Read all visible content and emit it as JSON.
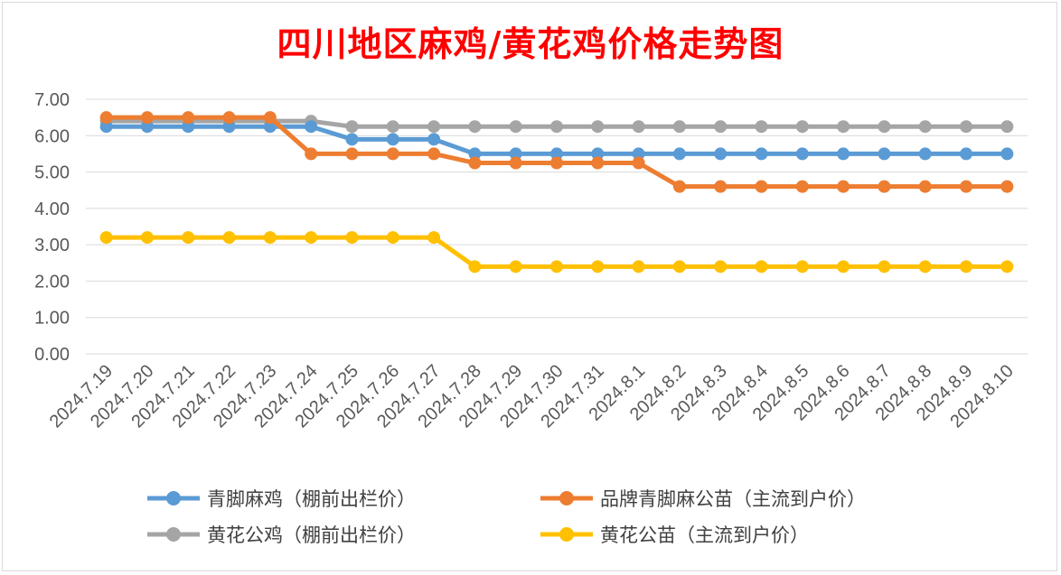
{
  "chart_data": {
    "type": "line",
    "title": "四川地区麻鸡/黄花鸡价格走势图",
    "categories": [
      "2024.7.19",
      "2024.7.20",
      "2024.7.21",
      "2024.7.22",
      "2024.7.23",
      "2024.7.24",
      "2024.7.25",
      "2024.7.26",
      "2024.7.27",
      "2024.7.28",
      "2024.7.29",
      "2024.7.30",
      "2024.7.31",
      "2024.8.1",
      "2024.8.2",
      "2024.8.3",
      "2024.8.4",
      "2024.8.5",
      "2024.8.6",
      "2024.8.7",
      "2024.8.8",
      "2024.8.9",
      "2024.8.10"
    ],
    "y_ticks": [
      "0.00",
      "1.00",
      "2.00",
      "3.00",
      "4.00",
      "5.00",
      "6.00",
      "7.00"
    ],
    "ylim": [
      0,
      7
    ],
    "grid": true,
    "legend_position": "bottom",
    "series": [
      {
        "name": "青脚麻鸡（棚前出栏价）",
        "color": "#5b9bd5",
        "values": [
          6.25,
          6.25,
          6.25,
          6.25,
          6.25,
          6.25,
          5.9,
          5.9,
          5.9,
          5.5,
          5.5,
          5.5,
          5.5,
          5.5,
          5.5,
          5.5,
          5.5,
          5.5,
          5.5,
          5.5,
          5.5,
          5.5,
          5.5
        ]
      },
      {
        "name": "品牌青脚麻公苗（主流到户价）",
        "color": "#ed7d31",
        "values": [
          6.5,
          6.5,
          6.5,
          6.5,
          6.5,
          5.5,
          5.5,
          5.5,
          5.5,
          5.25,
          5.25,
          5.25,
          5.25,
          5.25,
          4.6,
          4.6,
          4.6,
          4.6,
          4.6,
          4.6,
          4.6,
          4.6,
          4.6
        ]
      },
      {
        "name": "黄花公鸡（棚前出栏价）",
        "color": "#a5a5a5",
        "values": [
          6.4,
          6.4,
          6.4,
          6.4,
          6.4,
          6.4,
          6.25,
          6.25,
          6.25,
          6.25,
          6.25,
          6.25,
          6.25,
          6.25,
          6.25,
          6.25,
          6.25,
          6.25,
          6.25,
          6.25,
          6.25,
          6.25,
          6.25
        ]
      },
      {
        "name": "黄花公苗（主流到户价）",
        "color": "#ffc000",
        "values": [
          3.2,
          3.2,
          3.2,
          3.2,
          3.2,
          3.2,
          3.2,
          3.2,
          3.2,
          2.4,
          2.4,
          2.4,
          2.4,
          2.4,
          2.4,
          2.4,
          2.4,
          2.4,
          2.4,
          2.4,
          2.4,
          2.4,
          2.4
        ]
      }
    ],
    "draw_order": [
      2,
      0,
      1,
      3
    ]
  }
}
